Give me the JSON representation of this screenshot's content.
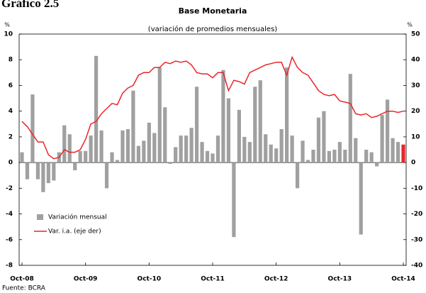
{
  "chart_data": {
    "type": "bar_line",
    "figure_label": "Gráfico 2.5",
    "title": "Base Monetaria",
    "subtitle": "(variación de promedios mensuales)",
    "y_unit": "%",
    "y2_unit": "%",
    "source": "Fuente: BCRA",
    "categories": [
      "Oct-08",
      null,
      null,
      null,
      null,
      null,
      null,
      null,
      null,
      null,
      null,
      null,
      "Oct-09",
      null,
      null,
      null,
      null,
      null,
      null,
      null,
      null,
      null,
      null,
      null,
      "Oct-10",
      null,
      null,
      null,
      null,
      null,
      null,
      null,
      null,
      null,
      null,
      null,
      "Oct-11",
      null,
      null,
      null,
      null,
      null,
      null,
      null,
      null,
      null,
      null,
      null,
      "Oct-12",
      null,
      null,
      null,
      null,
      null,
      null,
      null,
      null,
      null,
      null,
      null,
      "Oct-13",
      null,
      null,
      null,
      null,
      null,
      null,
      null,
      null,
      null,
      null,
      null,
      "Oct-14"
    ],
    "series": [
      {
        "name": "Variación mensual",
        "type": "bar",
        "color": "#a0a0a0",
        "highlight": {
          "index": 72,
          "color": "#e8262a"
        },
        "values": [
          0.8,
          -1.3,
          5.3,
          -1.3,
          -2.3,
          -1.6,
          -1.4,
          0.8,
          2.9,
          2.2,
          -0.6,
          0.9,
          0.9,
          2.1,
          8.3,
          2.5,
          -2.0,
          0.8,
          0.2,
          2.5,
          2.6,
          5.6,
          1.3,
          1.7,
          3.1,
          2.3,
          7.4,
          4.3,
          -0.1,
          1.2,
          2.1,
          2.1,
          2.7,
          5.9,
          1.6,
          0.9,
          0.7,
          2.1,
          7.2,
          5.0,
          -5.8,
          4.1,
          2.0,
          1.6,
          5.9,
          6.4,
          2.2,
          1.4,
          1.1,
          2.6,
          7.4,
          2.1,
          -2.0,
          1.7,
          0.2,
          1.0,
          3.5,
          4.0,
          0.9,
          1.0,
          1.6,
          1.0,
          6.9,
          1.9,
          -5.6,
          1.0,
          0.8,
          -0.3,
          3.7,
          4.9,
          1.9,
          1.6,
          1.4
        ]
      },
      {
        "name": "Var. i.a. (eje der)",
        "type": "line",
        "axis": "y2",
        "color": "#e8262a",
        "values": [
          16,
          14,
          11,
          8,
          8,
          3,
          1.5,
          2,
          5,
          4,
          4,
          5,
          9,
          15,
          16,
          19,
          21,
          23,
          22.5,
          27,
          29,
          30,
          34,
          35,
          35,
          37,
          37,
          39,
          38.5,
          39.5,
          39,
          39.5,
          38,
          35,
          34.5,
          34.5,
          33,
          35,
          35,
          28,
          32,
          31.5,
          30.5,
          35,
          36,
          37,
          38,
          38.5,
          39,
          39,
          34,
          41,
          37,
          35,
          34,
          31,
          28,
          26.5,
          26,
          26.5,
          24,
          23.5,
          23,
          19,
          18.5,
          19,
          17.5,
          18,
          19,
          20,
          20,
          19.5,
          20
        ]
      }
    ],
    "ylim": [
      -8,
      10
    ],
    "yticks": [
      -8,
      -6,
      -4,
      -2,
      0,
      2,
      4,
      6,
      8,
      10
    ],
    "y2lim": [
      -40,
      50
    ],
    "y2ticks": [
      -40,
      -30,
      -20,
      -10,
      0,
      10,
      20,
      30,
      40,
      50
    ],
    "legend": "lower left"
  }
}
